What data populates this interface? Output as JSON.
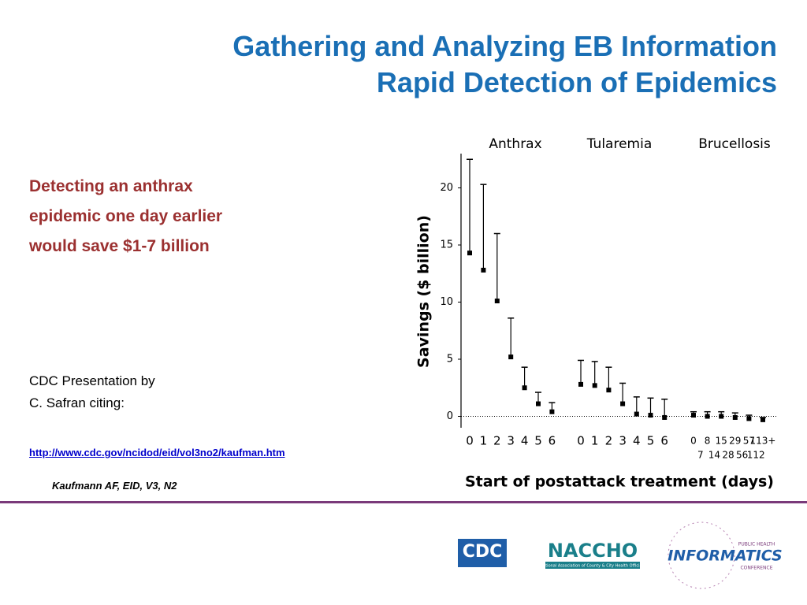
{
  "title_lines": [
    "Gathering and Analyzing EB Information",
    "Rapid Detection of Epidemics"
  ],
  "highlight_lines": [
    "Detecting an anthrax",
    "epidemic one day earlier",
    "would save $1-7 billion"
  ],
  "citation_lines": [
    "CDC Presentation by",
    "C. Safran citing:"
  ],
  "link": "http://www.cdc.gov/ncidod/eid/vol3no2/kaufman.htm",
  "reference": "Kaufmann AF, EID, V3, N2",
  "logos": {
    "cdc": "CDC",
    "naccho": "NACCHO",
    "naccho_sub": "National Association of County & City Health Officials",
    "phi_top": "PUBLIC HEALTH",
    "phi_main": "INFORMATICS",
    "phi_bottom": "CONFERENCE"
  },
  "chart_data": {
    "type": "range",
    "ylabel": "Savings ($ billion)",
    "xlabel": "Start of postattack treatment (days)",
    "ylim": [
      -1,
      23
    ],
    "yticks": [
      0,
      5,
      10,
      15,
      20
    ],
    "groups": [
      {
        "name": "Anthrax",
        "categories": [
          "0",
          "1",
          "2",
          "3",
          "4",
          "5",
          "6"
        ],
        "low": [
          14.3,
          12.8,
          10.1,
          5.2,
          2.5,
          1.1,
          0.4
        ],
        "high": [
          22.5,
          20.3,
          16,
          8.6,
          4.3,
          2.1,
          1.2
        ]
      },
      {
        "name": "Tularemia",
        "categories": [
          "0",
          "1",
          "2",
          "3",
          "4",
          "5",
          "6"
        ],
        "low": [
          2.8,
          2.7,
          2.3,
          1.1,
          0.2,
          0.1,
          -0.1
        ],
        "high": [
          4.9,
          4.8,
          4.3,
          2.9,
          1.7,
          1.6,
          1.5
        ]
      },
      {
        "name": "Brucellosis",
        "categories": [
          "0",
          "8",
          "15",
          "29",
          "57",
          "113+"
        ],
        "sublabels": [
          "7",
          "14",
          "28",
          "56",
          "112",
          null
        ],
        "low": [
          0.1,
          0,
          0,
          -0.1,
          -0.2,
          -0.3
        ],
        "high": [
          0.4,
          0.4,
          0.4,
          0.3,
          0.1,
          -0.1
        ]
      }
    ]
  }
}
